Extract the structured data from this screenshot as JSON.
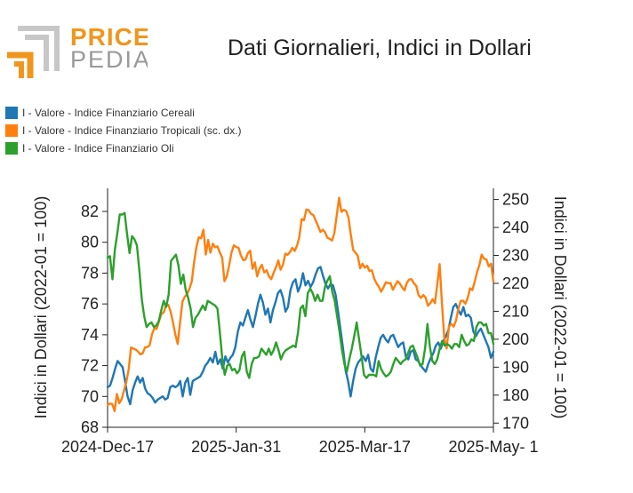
{
  "brand": {
    "word1": "PRICE",
    "word2": "PEDIA"
  },
  "colors": {
    "logo_orange": "#f0961e",
    "logo_gray": "#9a9a9a"
  },
  "chart_data": {
    "type": "line",
    "title": "Dati Giornalieri, Indici in Dollari",
    "ylabel": "Indici in Dollari (2022-01 = 100)",
    "y2label": "Indici in Dollari (2022-01 = 100)",
    "legend_position": "top-left",
    "grid": false,
    "ylim": [
      68,
      83.5
    ],
    "y2lim": [
      168.5,
      254
    ],
    "y_ticks": [
      68,
      70,
      72,
      74,
      76,
      78,
      80,
      82
    ],
    "y2_ticks": [
      170,
      180,
      190,
      200,
      210,
      220,
      230,
      240,
      250
    ],
    "x_tick_labels": [
      "2024-Dec-17",
      "2025-Jan-31",
      "2025-Mar-17",
      "2025-May- 1"
    ],
    "series": [
      {
        "name": "I - Valore - Indice Finanziario Cereali",
        "color": "#1f77b4",
        "axis": "left",
        "values": [
          70.6,
          70.7,
          71.2,
          71.8,
          72.3,
          72.1,
          71.9,
          71.0,
          70.0,
          69.5,
          70.4,
          70.9,
          71.3,
          70.9,
          71.2,
          70.5,
          70.2,
          70.1,
          69.9,
          69.6,
          69.8,
          69.9,
          70.0,
          69.8,
          69.9,
          70.6,
          70.7,
          70.6,
          70.7,
          71.0,
          70.0,
          70.9,
          71.2,
          70.1,
          71.0,
          71.1,
          71.2,
          71.3,
          71.6,
          72.0,
          72.2,
          72.5,
          72.2,
          72.9,
          72.1,
          72.4,
          71.8,
          72.6,
          72.2,
          72.5,
          72.7,
          73.2,
          74.2,
          74.8,
          74.6,
          75.1,
          75.6,
          75.0,
          74.5,
          75.2,
          76.0,
          76.6,
          76.1,
          75.3,
          75.7,
          74.8,
          75.6,
          76.1,
          76.7,
          76.9,
          76.4,
          75.5,
          75.8,
          76.9,
          77.4,
          77.6,
          76.8,
          77.2,
          78.0,
          77.2,
          77.5,
          77.1,
          77.4,
          77.9,
          78.3,
          78.4,
          77.8,
          77.3,
          77.0,
          77.3,
          77.2,
          76.6,
          75.5,
          74.3,
          73.1,
          71.7,
          71.0,
          70.0,
          71.0,
          71.8,
          72.2,
          72.4,
          72.6,
          72.3,
          72.7,
          71.8,
          71.6,
          72.5,
          73.2,
          73.8,
          74.0,
          73.7,
          73.5,
          73.9,
          74.0,
          73.6,
          73.2,
          73.4,
          73.5,
          72.6,
          72.4,
          72.9,
          73.0,
          72.4,
          72.3,
          72.0,
          71.8,
          71.6,
          72.1,
          72.5,
          72.8,
          73.3,
          73.5,
          73.1,
          73.6,
          73.9,
          74.3,
          75.1,
          75.8,
          76.0,
          75.6,
          75.3,
          75.8,
          75.2,
          75.3,
          75.1,
          74.2,
          73.9,
          74.2,
          74.4,
          74.0,
          73.6,
          73.2,
          72.5,
          72.9
        ]
      },
      {
        "name": "I - Valore - Indice Finanziario Tropicali (sc. dx.)",
        "color": "#ff7f0e",
        "axis": "right",
        "values": [
          176.5,
          177.0,
          176.8,
          174.3,
          180.4,
          177.1,
          178.5,
          181.6,
          184.6,
          189.1,
          197.0,
          196.7,
          196.3,
          195.6,
          194.6,
          194.9,
          197.1,
          197.2,
          197.8,
          201.8,
          203.9,
          203.7,
          206.5,
          209.0,
          209.6,
          212.2,
          212.3,
          209.8,
          205.9,
          201.6,
          198.3,
          205.9,
          213.4,
          215.2,
          216.1,
          218.1,
          220.7,
          227.5,
          233.1,
          236.5,
          236.1,
          239.2,
          230.3,
          235.5,
          231.0,
          234.2,
          232.9,
          233.2,
          231.0,
          229.2,
          220.8,
          222.5,
          226.5,
          231.0,
          233.6,
          233.0,
          232.7,
          230.1,
          228.3,
          228.5,
          230.8,
          231.7,
          225.2,
          227.5,
          222.5,
          225.3,
          226.6,
          223.9,
          224.7,
          222.5,
          221.5,
          223.8,
          225.7,
          228.2,
          224.9,
          226.7,
          230.6,
          230.2,
          231.2,
          232.7,
          231.6,
          233.5,
          236.6,
          243.0,
          242.6,
          246.4,
          246.2,
          244.9,
          244.4,
          242.5,
          240.6,
          238.4,
          239.2,
          238.3,
          236.3,
          235.9,
          235.3,
          238.0,
          244.4,
          250.6,
          245.6,
          246.3,
          245.9,
          243.6,
          237.4,
          232.0,
          231.0,
          229.8,
          225.4,
          227.0,
          225.6,
          226.3,
          224.4,
          224.7,
          221.7,
          220.0,
          218.8,
          217.0,
          218.6,
          220.4,
          220.1,
          220.1,
          217.7,
          219.3,
          220.8,
          219.9,
          218.5,
          217.5,
          220.2,
          221.4,
          221.5,
          220.0,
          219.1,
          215.8,
          214.8,
          215.8,
          214.9,
          212.0,
          212.9,
          214.3,
          212.9,
          219.8,
          226.9,
          212.9,
          200.2,
          196.7,
          204.5,
          205.5,
          204.5,
          206.7,
          210.8,
          213.7,
          213.8,
          212.7,
          214.8,
          218.2,
          217.6,
          220.6,
          224.0,
          226.5,
          230.3,
          228.8,
          228.5,
          226.1,
          227.0,
          220.5
        ]
      },
      {
        "name": "I - Valore - Indice Finanziario Oli",
        "color": "#2ca02c",
        "axis": "left",
        "values": [
          79.0,
          79.1,
          77.6,
          79.5,
          80.6,
          81.8,
          81.8,
          81.9,
          80.5,
          79.3,
          80.4,
          80.2,
          79.8,
          78.2,
          76.3,
          75.2,
          74.5,
          74.7,
          74.8,
          74.5,
          74.6,
          74.9,
          75.6,
          76.2,
          75.8,
          76.6,
          78.8,
          79.0,
          79.2,
          78.5,
          77.3,
          77.9,
          76.9,
          76.4,
          75.7,
          74.5,
          75.1,
          75.3,
          75.6,
          75.9,
          75.6,
          76.2,
          76.1,
          76.0,
          75.9,
          75.7,
          74.1,
          72.4,
          71.4,
          72.0,
          72.1,
          71.7,
          71.8,
          71.5,
          71.7,
          72.6,
          72.9,
          71.6,
          71.2,
          72.1,
          72.5,
          72.5,
          72.6,
          73.1,
          72.9,
          72.7,
          73.1,
          72.7,
          73.0,
          73.5,
          73.0,
          72.4,
          72.8,
          73.0,
          73.1,
          73.2,
          73.3,
          73.2,
          74.2,
          75.7,
          75.9,
          75.2,
          76.7,
          77.0,
          76.7,
          76.2,
          76.6,
          76.2,
          76.2,
          77.1,
          77.5,
          77.8,
          76.8,
          76.2,
          75.2,
          74.2,
          73.0,
          72.1,
          71.6,
          72.4,
          73.1,
          73.9,
          74.8,
          73.7,
          72.6,
          71.4,
          71.2,
          71.4,
          71.4,
          71.4,
          71.3,
          72.3,
          71.8,
          71.5,
          71.3,
          71.4,
          71.6,
          72.1,
          72.5,
          72.3,
          72.1,
          72.3,
          72.4,
          72.8,
          73.2,
          73.3,
          72.9,
          72.5,
          72.0,
          72.1,
          73.1,
          74.7,
          73.2,
          72.3,
          72.1,
          72.4,
          73.1,
          73.6,
          73.3,
          73.4,
          73.3,
          73.1,
          73.4,
          73.4,
          73.2,
          74.0,
          73.6,
          73.3,
          73.4,
          73.7,
          73.6,
          74.5,
          74.8,
          74.8,
          74.6,
          74.7,
          74.1,
          74.1,
          73.4
        ]
      }
    ]
  }
}
